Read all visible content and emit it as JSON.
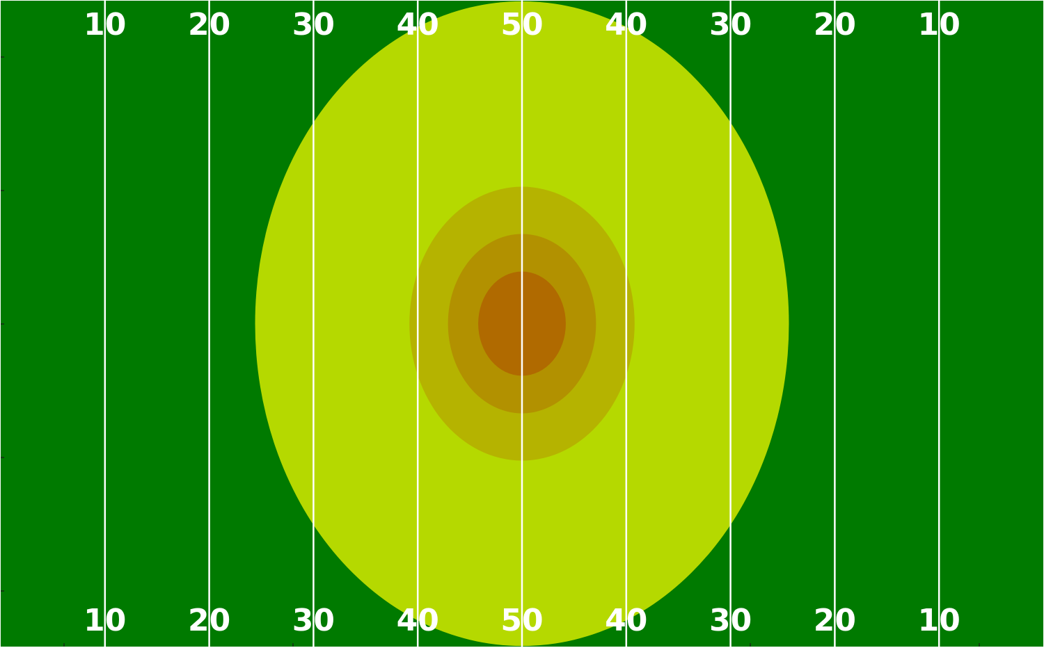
{
  "chart_data": {
    "type": "heatmap",
    "title": "",
    "xlabel": "",
    "ylabel": "",
    "field": {
      "xlim": [
        0,
        100
      ],
      "ylim": [
        0,
        53.3
      ],
      "field_color": "#007a00",
      "line_color": "#ffffff",
      "yard_lines": [
        10,
        20,
        30,
        40,
        50,
        60,
        70,
        80,
        90
      ],
      "yard_labels": [
        "10",
        "20",
        "30",
        "40",
        "50",
        "40",
        "30",
        "20",
        "10"
      ]
    },
    "contours": [
      {
        "level": 1,
        "color": "#b5d900",
        "center": [
          50,
          26.65
        ],
        "rx": 25.6,
        "ry": 26.6
      },
      {
        "level": 2,
        "color": "#b5b300",
        "center": [
          50,
          26.65
        ],
        "rx": 10.8,
        "ry": 11.3
      },
      {
        "level": 3,
        "color": "#b29100",
        "center": [
          50,
          26.65
        ],
        "rx": 7.1,
        "ry": 7.4
      },
      {
        "level": 4,
        "color": "#b06a00",
        "center": [
          50,
          26.65
        ],
        "rx": 4.2,
        "ry": 4.3
      }
    ],
    "grid": false,
    "legend": "none"
  }
}
